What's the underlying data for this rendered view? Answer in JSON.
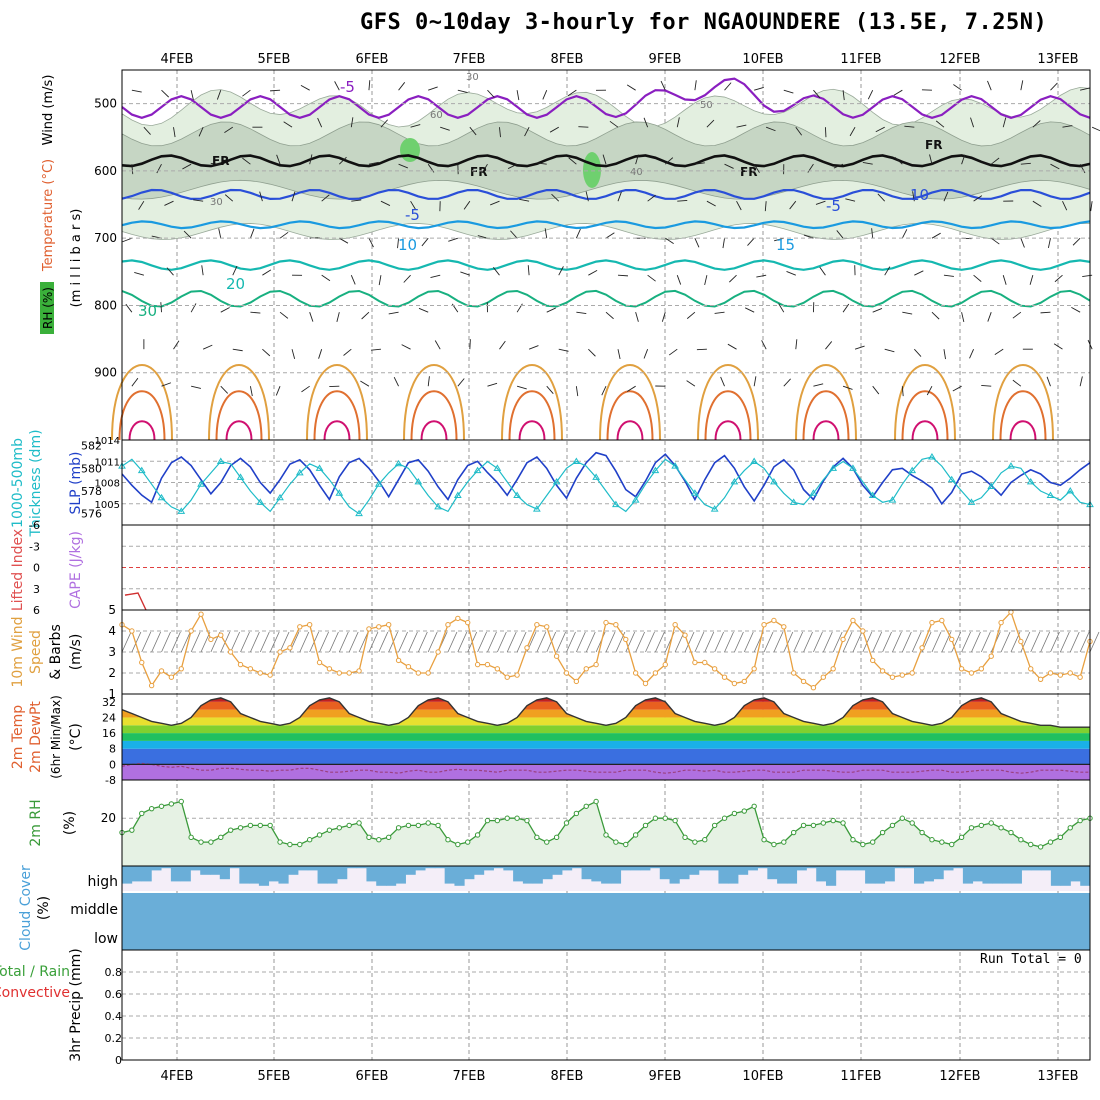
{
  "title": "GFS 0~10day 3-hourly for NGAOUNDERE (13.5E, 7.25N)",
  "run_total_label": "Run Total = 0",
  "colors": {
    "dewpoint_band": "#b07fe0",
    "temp_band_low": "#1a73e8",
    "temp_band_high": "#e8551a",
    "thickness": "#1fbcc8",
    "slp": "#2040c8",
    "wind_speed": "#e8a040",
    "rh": "#3a9a3a",
    "cloud": "#6aaed8",
    "cloud_bg": "#f4eef8"
  },
  "chart_data": [
    {
      "type": "line",
      "name": "upper_air_cross_section",
      "dates": [
        "4FEB",
        "5FEB",
        "6FEB",
        "7FEB",
        "8FEB",
        "9FEB",
        "10FEB",
        "11FEB",
        "12FEB",
        "13FEB"
      ],
      "y_labels": [
        "500",
        "600",
        "700",
        "800",
        "900"
      ],
      "left_labels": [
        "Wind (m/s)",
        "Temperature (°C)",
        "RH (%)",
        "(m i l l i b a r s)"
      ],
      "contour_labels": [
        "-5",
        "FR",
        "FR",
        "FR",
        "FR",
        "-5",
        "-5",
        "10",
        "10",
        "15",
        "20",
        "30",
        "30",
        "30",
        "40",
        "50",
        "60"
      ],
      "ylim": [
        450,
        1000
      ]
    },
    {
      "type": "line",
      "name": "thickness_slp",
      "left_labels": [
        "1000-500mb",
        "Thickness (dm)",
        "SLP (mb)"
      ],
      "thickness_ticks": [
        "576",
        "578",
        "580",
        "582"
      ],
      "slp_ticks": [
        "1005",
        "1008",
        "1011",
        "1014"
      ],
      "series": [
        {
          "name": "SLP (mb)",
          "values": [
            1009.2,
            1007.6,
            1006.2,
            1005.2,
            1008.6,
            1010.8,
            1011.6,
            1010.4,
            1008.4,
            1006.4,
            1008.0,
            1010.4,
            1011.4,
            1010.2,
            1008.0,
            1006.5,
            1008.4,
            1010.6,
            1011.2,
            1009.8,
            1007.6,
            1005.6,
            1008.8,
            1010.8,
            1011.4,
            1010.0,
            1008.2,
            1006.0,
            1008.4,
            1010.8,
            1011.2,
            1009.6,
            1007.4,
            1005.6,
            1008.4,
            1010.4,
            1011.0,
            1009.4,
            1008.0,
            1006.2,
            1008.4,
            1010.8,
            1011.6,
            1010.0,
            1007.6,
            1005.8,
            1008.6,
            1010.8,
            1012.2,
            1011.8,
            1009.6,
            1007.0,
            1006.0,
            1008.2,
            1010.8,
            1012.0,
            1010.4,
            1008.2,
            1005.6,
            1008.4,
            1010.8,
            1011.8,
            1010.0,
            1007.4,
            1005.4,
            1007.6,
            1010.2,
            1011.2,
            1009.8,
            1007.0,
            1005.6,
            1008.2,
            1010.2,
            1011.4,
            1010.0,
            1007.6,
            1006.0,
            1008.0,
            1009.8,
            1010.0,
            1009.0,
            1008.2,
            1007.2,
            1005.0,
            1006.6,
            1009.2,
            1009.6,
            1008.8,
            1007.6,
            1006.2,
            1008.0,
            1009.0,
            1009.8,
            1009.2,
            1008.0,
            1007.6,
            1008.6,
            1009.8,
            1010.8
          ]
        },
        {
          "name": "1000-500mb Thickness (dm)",
          "values": [
            580.2,
            580.8,
            579.8,
            578.6,
            577.4,
            576.6,
            576.2,
            577.2,
            578.6,
            579.6,
            580.6,
            580.4,
            579.2,
            578.0,
            577.0,
            576.2,
            577.4,
            578.6,
            579.6,
            580.4,
            580.0,
            579.0,
            577.8,
            576.6,
            576.0,
            577.2,
            578.6,
            579.6,
            580.4,
            580.0,
            578.8,
            577.6,
            576.6,
            576.2,
            577.6,
            578.8,
            579.8,
            580.6,
            580.0,
            578.8,
            577.6,
            576.8,
            576.4,
            577.6,
            578.8,
            580.0,
            580.6,
            580.2,
            579.2,
            578.0,
            576.8,
            576.2,
            577.2,
            578.6,
            579.8,
            580.8,
            580.2,
            579.0,
            577.8,
            576.8,
            576.4,
            577.4,
            578.8,
            579.8,
            580.6,
            580.0,
            578.8,
            577.8,
            577.0,
            576.8,
            577.8,
            579.0,
            580.0,
            580.6,
            580.0,
            578.8,
            577.6,
            577.0,
            577.2,
            578.6,
            579.8,
            580.8,
            581.0,
            580.2,
            579.0,
            578.0,
            577.0,
            577.4,
            578.4,
            579.6,
            580.2,
            580.0,
            578.8,
            578.0,
            577.6,
            577.2,
            578.0,
            577.0,
            576.8
          ]
        }
      ]
    },
    {
      "type": "line",
      "name": "cape_lifted_index",
      "left_labels": [
        "Lifted Index",
        "CAPE (J/kg)"
      ],
      "y_ticks": [
        "-6",
        "-3",
        "0",
        "3",
        "6"
      ],
      "ylim": [
        -6,
        6
      ],
      "lifted_index_values": [
        3.9,
        3.6
      ]
    },
    {
      "type": "line",
      "name": "wind10m",
      "left_labels": [
        "10m Wind",
        "Speed",
        "& Barbs",
        "(m/s)"
      ],
      "y_ticks": [
        "1",
        "2",
        "3",
        "4",
        "5"
      ],
      "ylim": [
        1,
        5
      ],
      "values": [
        4.3,
        4.0,
        2.5,
        1.4,
        2.1,
        1.8,
        2.2,
        4.0,
        4.8,
        3.6,
        3.8,
        3.0,
        2.4,
        2.2,
        2.0,
        1.9,
        3.0,
        3.2,
        4.2,
        4.3,
        2.5,
        2.2,
        2.0,
        2.0,
        2.1,
        4.1,
        4.2,
        4.3,
        2.6,
        2.3,
        2.0,
        2.0,
        3.0,
        4.3,
        4.6,
        4.4,
        2.4,
        2.4,
        2.2,
        1.8,
        1.9,
        3.2,
        4.3,
        4.2,
        2.8,
        2.0,
        1.6,
        2.2,
        2.4,
        4.4,
        4.3,
        3.6,
        2.0,
        1.5,
        2.0,
        2.4,
        4.3,
        3.8,
        2.5,
        2.5,
        2.2,
        1.8,
        1.5,
        1.6,
        2.2,
        4.3,
        4.5,
        4.2,
        2.0,
        1.6,
        1.3,
        1.8,
        2.2,
        3.6,
        4.5,
        4.0,
        2.6,
        2.1,
        1.8,
        1.9,
        2.0,
        3.2,
        4.4,
        4.5,
        3.6,
        2.2,
        2.0,
        2.2,
        2.8,
        4.4,
        4.9,
        3.5,
        2.2,
        1.7,
        2.0,
        1.9,
        2.0,
        1.8,
        3.5
      ]
    },
    {
      "type": "area",
      "name": "temp_dewpoint",
      "left_labels": [
        "2m Temp",
        "2m DewPt",
        "(6hr Min/Max)",
        "(°C)"
      ],
      "y_ticks": [
        "-8",
        "0",
        "8",
        "16",
        "24",
        "32"
      ],
      "ylim": [
        -8,
        36
      ],
      "temp_values": [
        28,
        26,
        24,
        22,
        21,
        20,
        21,
        24,
        30,
        33,
        34,
        32,
        26,
        24,
        22,
        21,
        20,
        21,
        24,
        30,
        33,
        34,
        32,
        26,
        24,
        22,
        21,
        20,
        21,
        24,
        30,
        33,
        34,
        32,
        26,
        24,
        22,
        21,
        20,
        21,
        24,
        30,
        33,
        34,
        32,
        26,
        24,
        22,
        21,
        20,
        21,
        24,
        30,
        33,
        34,
        32,
        26,
        24,
        22,
        21,
        20,
        21,
        24,
        30,
        33,
        34,
        32,
        26,
        24,
        22,
        21,
        20,
        21,
        24,
        30,
        33,
        34,
        32,
        26,
        24,
        22,
        21,
        20,
        21,
        24,
        30,
        33,
        34,
        32,
        26,
        24,
        22,
        21,
        20,
        20,
        19,
        19,
        19,
        19
      ],
      "dewpoint_values": [
        -1,
        0,
        0.5,
        0,
        -1,
        -1.5,
        -1,
        -2,
        -3,
        -3,
        -2,
        -2,
        -2.5,
        -3,
        -3,
        -3.5,
        -3,
        -3,
        -2,
        -2,
        -3,
        -4,
        -4,
        -3.5,
        -3,
        -3,
        -4,
        -4,
        -4.5,
        -3.5,
        -3,
        -4,
        -4,
        -3,
        -2.5,
        -3,
        -3,
        -3.5,
        -4,
        -3,
        -3,
        -3,
        -4,
        -4,
        -3.5,
        -3,
        -3,
        -3.5,
        -4,
        -4,
        -4,
        -3,
        -3,
        -3,
        -4,
        -4.5,
        -4,
        -3,
        -3,
        -3.5,
        -3,
        -4,
        -4,
        -3.5,
        -3,
        -3,
        -4,
        -4,
        -4,
        -3,
        -3,
        -3,
        -3.5,
        -4,
        -4,
        -3,
        -3,
        -3,
        -4,
        -4,
        -4,
        -3.5,
        -3,
        -3,
        -4,
        -4,
        -3.5,
        -3,
        -3,
        -3,
        -4,
        -4.5,
        -4,
        -3,
        -3,
        -3,
        -3.5,
        -4,
        -4
      ]
    },
    {
      "type": "area",
      "name": "rh2m",
      "left_labels": [
        "2m RH",
        "(%)"
      ],
      "y_ticks": [
        "20"
      ],
      "ylim": [
        0,
        36
      ],
      "values": [
        14,
        15,
        22,
        24,
        25,
        26,
        27,
        12,
        10,
        10,
        12,
        15,
        16,
        17,
        17,
        17,
        10,
        9,
        9,
        11,
        13,
        15,
        16,
        17,
        18,
        12,
        11,
        12,
        16,
        17,
        17,
        18,
        17,
        11,
        9,
        10,
        13,
        19,
        19,
        20,
        20,
        19,
        12,
        10,
        12,
        18,
        22,
        25,
        27,
        13,
        10,
        9,
        13,
        17,
        20,
        20,
        19,
        12,
        10,
        11,
        17,
        20,
        22,
        23,
        25,
        11,
        9,
        10,
        14,
        17,
        17,
        18,
        19,
        18,
        11,
        9,
        10,
        14,
        17,
        20,
        18,
        14,
        11,
        10,
        9,
        12,
        16,
        17,
        18,
        16,
        14,
        11,
        9,
        8,
        10,
        12,
        16,
        19,
        20
      ]
    },
    {
      "type": "bar",
      "name": "cloud_cover",
      "left_labels": [
        "Cloud Cover",
        "(%)"
      ],
      "categories": [
        "high",
        "middle",
        "low"
      ],
      "high_values": [
        80,
        70,
        70,
        20,
        10,
        70,
        70,
        20,
        40,
        40,
        60,
        10,
        80,
        80,
        90,
        70,
        80,
        40,
        20,
        20,
        80,
        80,
        60,
        10,
        10,
        70,
        90,
        90,
        80,
        40,
        20,
        10,
        10,
        80,
        90,
        60,
        40,
        20,
        10,
        20,
        70,
        80,
        80,
        60,
        40,
        20,
        10,
        60,
        70,
        80,
        80,
        20,
        20,
        20,
        10,
        60,
        80,
        60,
        40,
        20,
        20,
        80,
        80,
        40,
        20,
        10,
        60,
        80,
        80,
        20,
        10,
        70,
        90,
        20,
        20,
        20,
        80,
        80,
        70,
        10,
        10,
        80,
        70,
        60,
        20,
        10,
        80,
        70,
        80,
        80,
        80,
        80,
        20,
        20,
        20,
        90,
        90,
        70,
        90
      ],
      "middle_values": [
        100
      ],
      "low_values": [
        100
      ]
    },
    {
      "type": "line",
      "name": "precip3hr",
      "left_labels": [
        "Total / Rain",
        "Convective",
        "3hr Precip (mm)"
      ],
      "y_ticks": [
        "0",
        "0.2",
        "0.4",
        "0.6",
        "0.8"
      ],
      "ylim": [
        0,
        1
      ],
      "values": []
    }
  ]
}
